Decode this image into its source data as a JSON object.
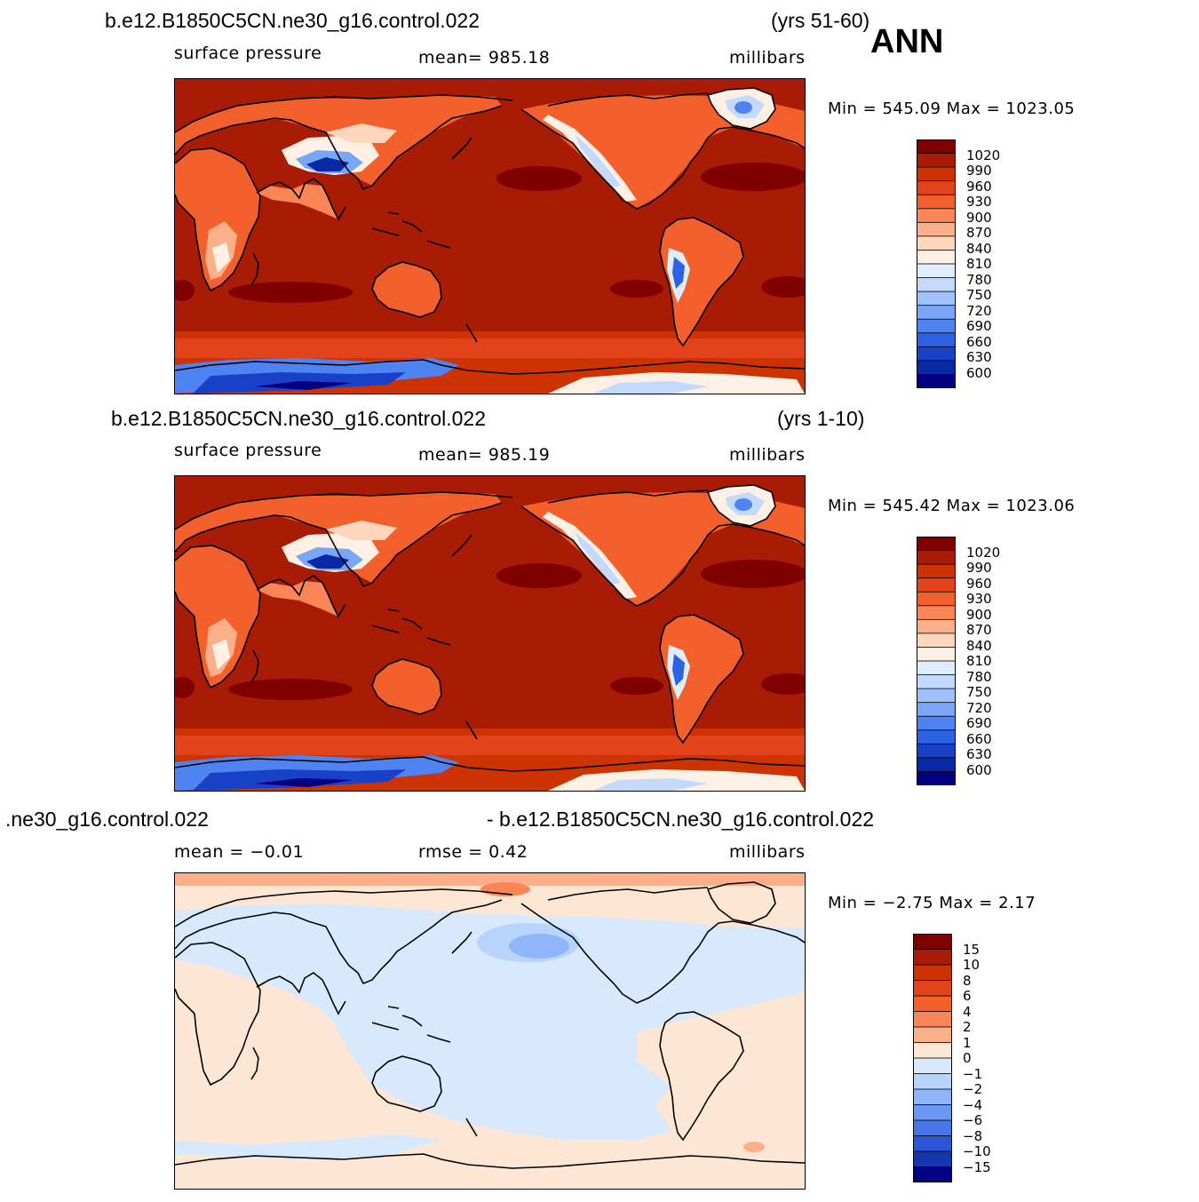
{
  "season": "ANN",
  "panels": [
    {
      "case": "b.e12.B1850C5CN.ne30_g16.control.022",
      "years": "(yrs 51-60)",
      "field": "surface pressure",
      "stat1": "mean= 985.18",
      "stat2": "",
      "units": "millibars",
      "minmax": "Min = 545.09 Max = 1023.05",
      "kind": "abs",
      "colorbar_labels": [
        "1020",
        "990",
        "960",
        "930",
        "900",
        "870",
        "840",
        "810",
        "780",
        "750",
        "720",
        "690",
        "660",
        "630",
        "600"
      ]
    },
    {
      "case": "b.e12.B1850C5CN.ne30_g16.control.022",
      "years": "(yrs 1-10)",
      "field": "surface pressure",
      "stat1": "mean= 985.19",
      "stat2": "",
      "units": "millibars",
      "minmax": "Min = 545.42 Max = 1023.06",
      "kind": "abs",
      "colorbar_labels": [
        "1020",
        "990",
        "960",
        "930",
        "900",
        "870",
        "840",
        "810",
        "780",
        "750",
        "720",
        "690",
        "660",
        "630",
        "600"
      ]
    },
    {
      "case": ".ne30_g16.control.022",
      "years": "- b.e12.B1850C5CN.ne30_g16.control.022",
      "field": "",
      "stat1": "mean = −0.01",
      "stat2": "rmse = 0.42",
      "units": "millibars",
      "minmax": "Min = −2.75 Max = 2.17",
      "kind": "diff",
      "colorbar_labels": [
        "15",
        "10",
        "8",
        "6",
        "4",
        "2",
        "1",
        "0",
        "−1",
        "−2",
        "−4",
        "−6",
        "−8",
        "−10",
        "−15"
      ]
    }
  ],
  "colors": {
    "abs_scale": [
      "#800000",
      "#a81c06",
      "#cc3300",
      "#e3431a",
      "#f3602c",
      "#fa8556",
      "#fcb08a",
      "#fdd6bd",
      "#fef0e5",
      "#dfeefe",
      "#c3dafe",
      "#9fc1fc",
      "#7aa6f8",
      "#4f83f2",
      "#2e62e5",
      "#1841c8",
      "#0828a6",
      "#000080"
    ],
    "diff_scale": [
      "#800000",
      "#a81c06",
      "#cc3300",
      "#e3431a",
      "#f3602c",
      "#fa8556",
      "#fcb08a",
      "#fde6d4",
      "#d8e9fe",
      "#b8d4fd",
      "#8fb6fa",
      "#6999f4",
      "#4776ea",
      "#2c56d6",
      "#1437b0",
      "#000080"
    ]
  }
}
